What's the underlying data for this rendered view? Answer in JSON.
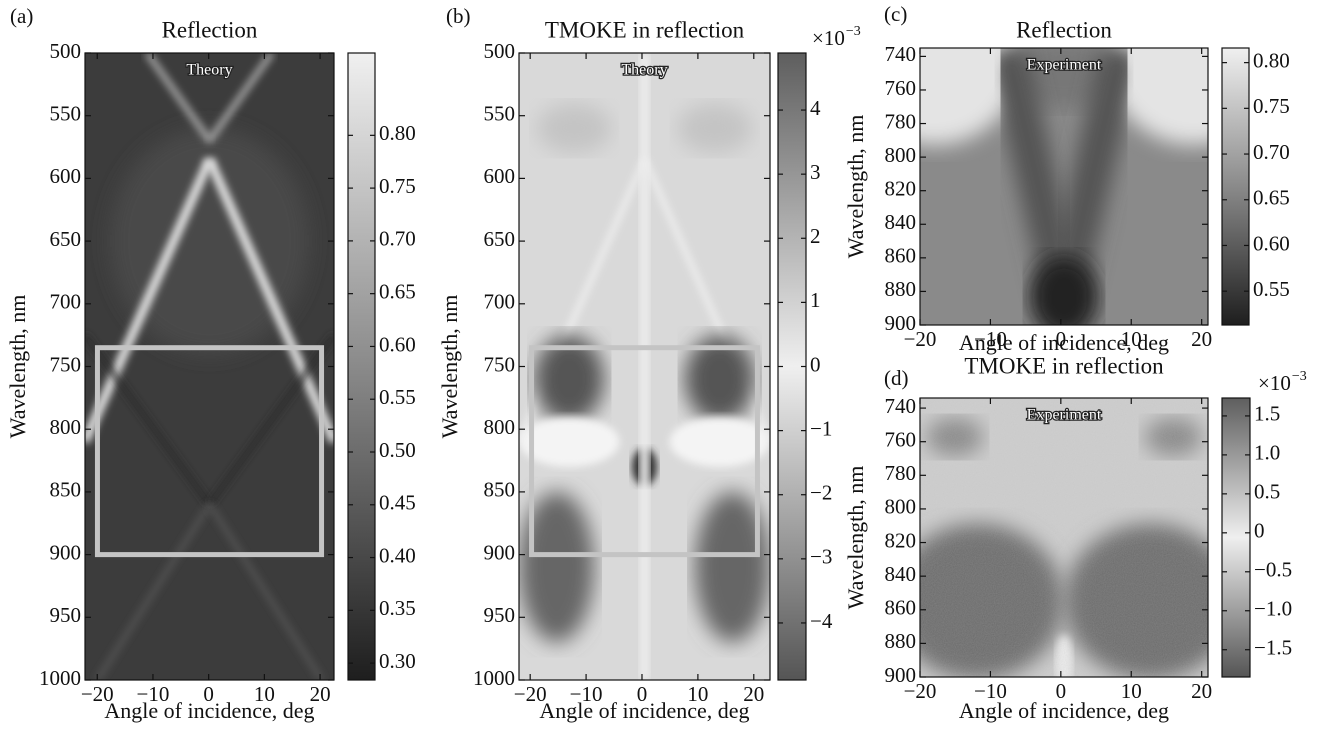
{
  "chart_data": [
    {
      "type": "heatmap",
      "panel_label": "(a)",
      "title": "Reflection",
      "annotation": "Theory",
      "xlabel": "Angle of incidence, deg",
      "ylabel": "Wavelength, nm",
      "xlim": [
        -22.2,
        22.5
      ],
      "xticks": [
        {
          "value": -20,
          "label": "−20"
        },
        {
          "value": -10,
          "label": "−10"
        },
        0,
        10,
        20
      ],
      "ylim": [
        500,
        1000
      ],
      "y_inverted": true,
      "yticks": [
        500,
        550,
        600,
        650,
        700,
        750,
        800,
        850,
        900,
        950,
        1000
      ],
      "colormap": "gray",
      "clim": [
        0.284,
        0.878
      ],
      "cticks": [
        {
          "value": 0.3,
          "label": "0.30"
        },
        0.35,
        {
          "value": 0.4,
          "label": "0.40"
        },
        0.45,
        {
          "value": 0.5,
          "label": "0.50"
        },
        0.55,
        {
          "value": 0.6,
          "label": "0.60"
        },
        0.65,
        {
          "value": 0.7,
          "label": "0.70"
        },
        0.75,
        {
          "value": 0.8,
          "label": "0.80"
        }
      ]
    },
    {
      "type": "heatmap",
      "panel_label": "(b)",
      "title": "TMOKE in reflection",
      "annotation": "Theory",
      "xlabel": "Angle of incidence, deg",
      "ylabel": "Wavelength, nm",
      "xlim": [
        -22.0,
        22.9
      ],
      "xticks": [
        {
          "value": -20,
          "label": "−20"
        },
        {
          "value": -10,
          "label": "−10"
        },
        0,
        10,
        20
      ],
      "ylim": [
        500,
        1000
      ],
      "y_inverted": true,
      "yticks": [
        500,
        550,
        600,
        650,
        700,
        750,
        800,
        850,
        900,
        950,
        1000
      ],
      "colormap": "gray-diverging",
      "clim": [
        -4.89,
        4.89
      ],
      "colorbar_multiplier": "×10",
      "colorbar_exponent": "−3",
      "cticks": [
        {
          "value": -4,
          "label": "−4"
        },
        {
          "value": -3,
          "label": "−3"
        },
        {
          "value": -2,
          "label": "−2"
        },
        {
          "value": -1,
          "label": "−1"
        },
        0,
        1,
        2,
        3,
        4
      ]
    },
    {
      "type": "heatmap",
      "panel_label": "(c)",
      "title": "Reflection",
      "annotation": "Experiment",
      "xlabel": "Angle of incidence, deg",
      "ylabel": "Wavelength, nm",
      "xlim": [
        -20,
        20.9
      ],
      "xticks": [
        {
          "value": -20,
          "label": "−20"
        },
        {
          "value": -10,
          "label": "−10"
        },
        0,
        10,
        20
      ],
      "ylim": [
        735,
        900
      ],
      "y_inverted": true,
      "yticks": [
        740,
        760,
        780,
        800,
        820,
        840,
        860,
        880,
        900
      ],
      "colormap": "gray",
      "clim": [
        0.513,
        0.816
      ],
      "cticks": [
        0.55,
        {
          "value": 0.6,
          "label": "0.60"
        },
        0.65,
        {
          "value": 0.7,
          "label": "0.70"
        },
        0.75,
        {
          "value": 0.8,
          "label": "0.80"
        }
      ]
    },
    {
      "type": "heatmap",
      "panel_label": "(d)",
      "title": "TMOKE in reflection",
      "annotation": "Experiment",
      "xlabel": "Angle of incidence, deg",
      "ylabel": "Wavelength, nm",
      "xlim": [
        -20,
        20.9
      ],
      "xticks": [
        {
          "value": -20,
          "label": "−20"
        },
        {
          "value": -10,
          "label": "−10"
        },
        0,
        10,
        20
      ],
      "ylim": [
        734,
        900
      ],
      "y_inverted": true,
      "yticks": [
        740,
        760,
        780,
        800,
        820,
        840,
        860,
        880,
        900
      ],
      "colormap": "gray-diverging",
      "clim": [
        -1.85,
        1.73
      ],
      "colorbar_multiplier": "×10",
      "colorbar_exponent": "−3",
      "cticks": [
        {
          "value": -1.5,
          "label": "−1.5"
        },
        {
          "value": -1,
          "label": "−1.0"
        },
        {
          "value": -0.5,
          "label": "−0.5"
        },
        0,
        0.5,
        {
          "value": 1,
          "label": "1.0"
        },
        1.5
      ]
    }
  ]
}
